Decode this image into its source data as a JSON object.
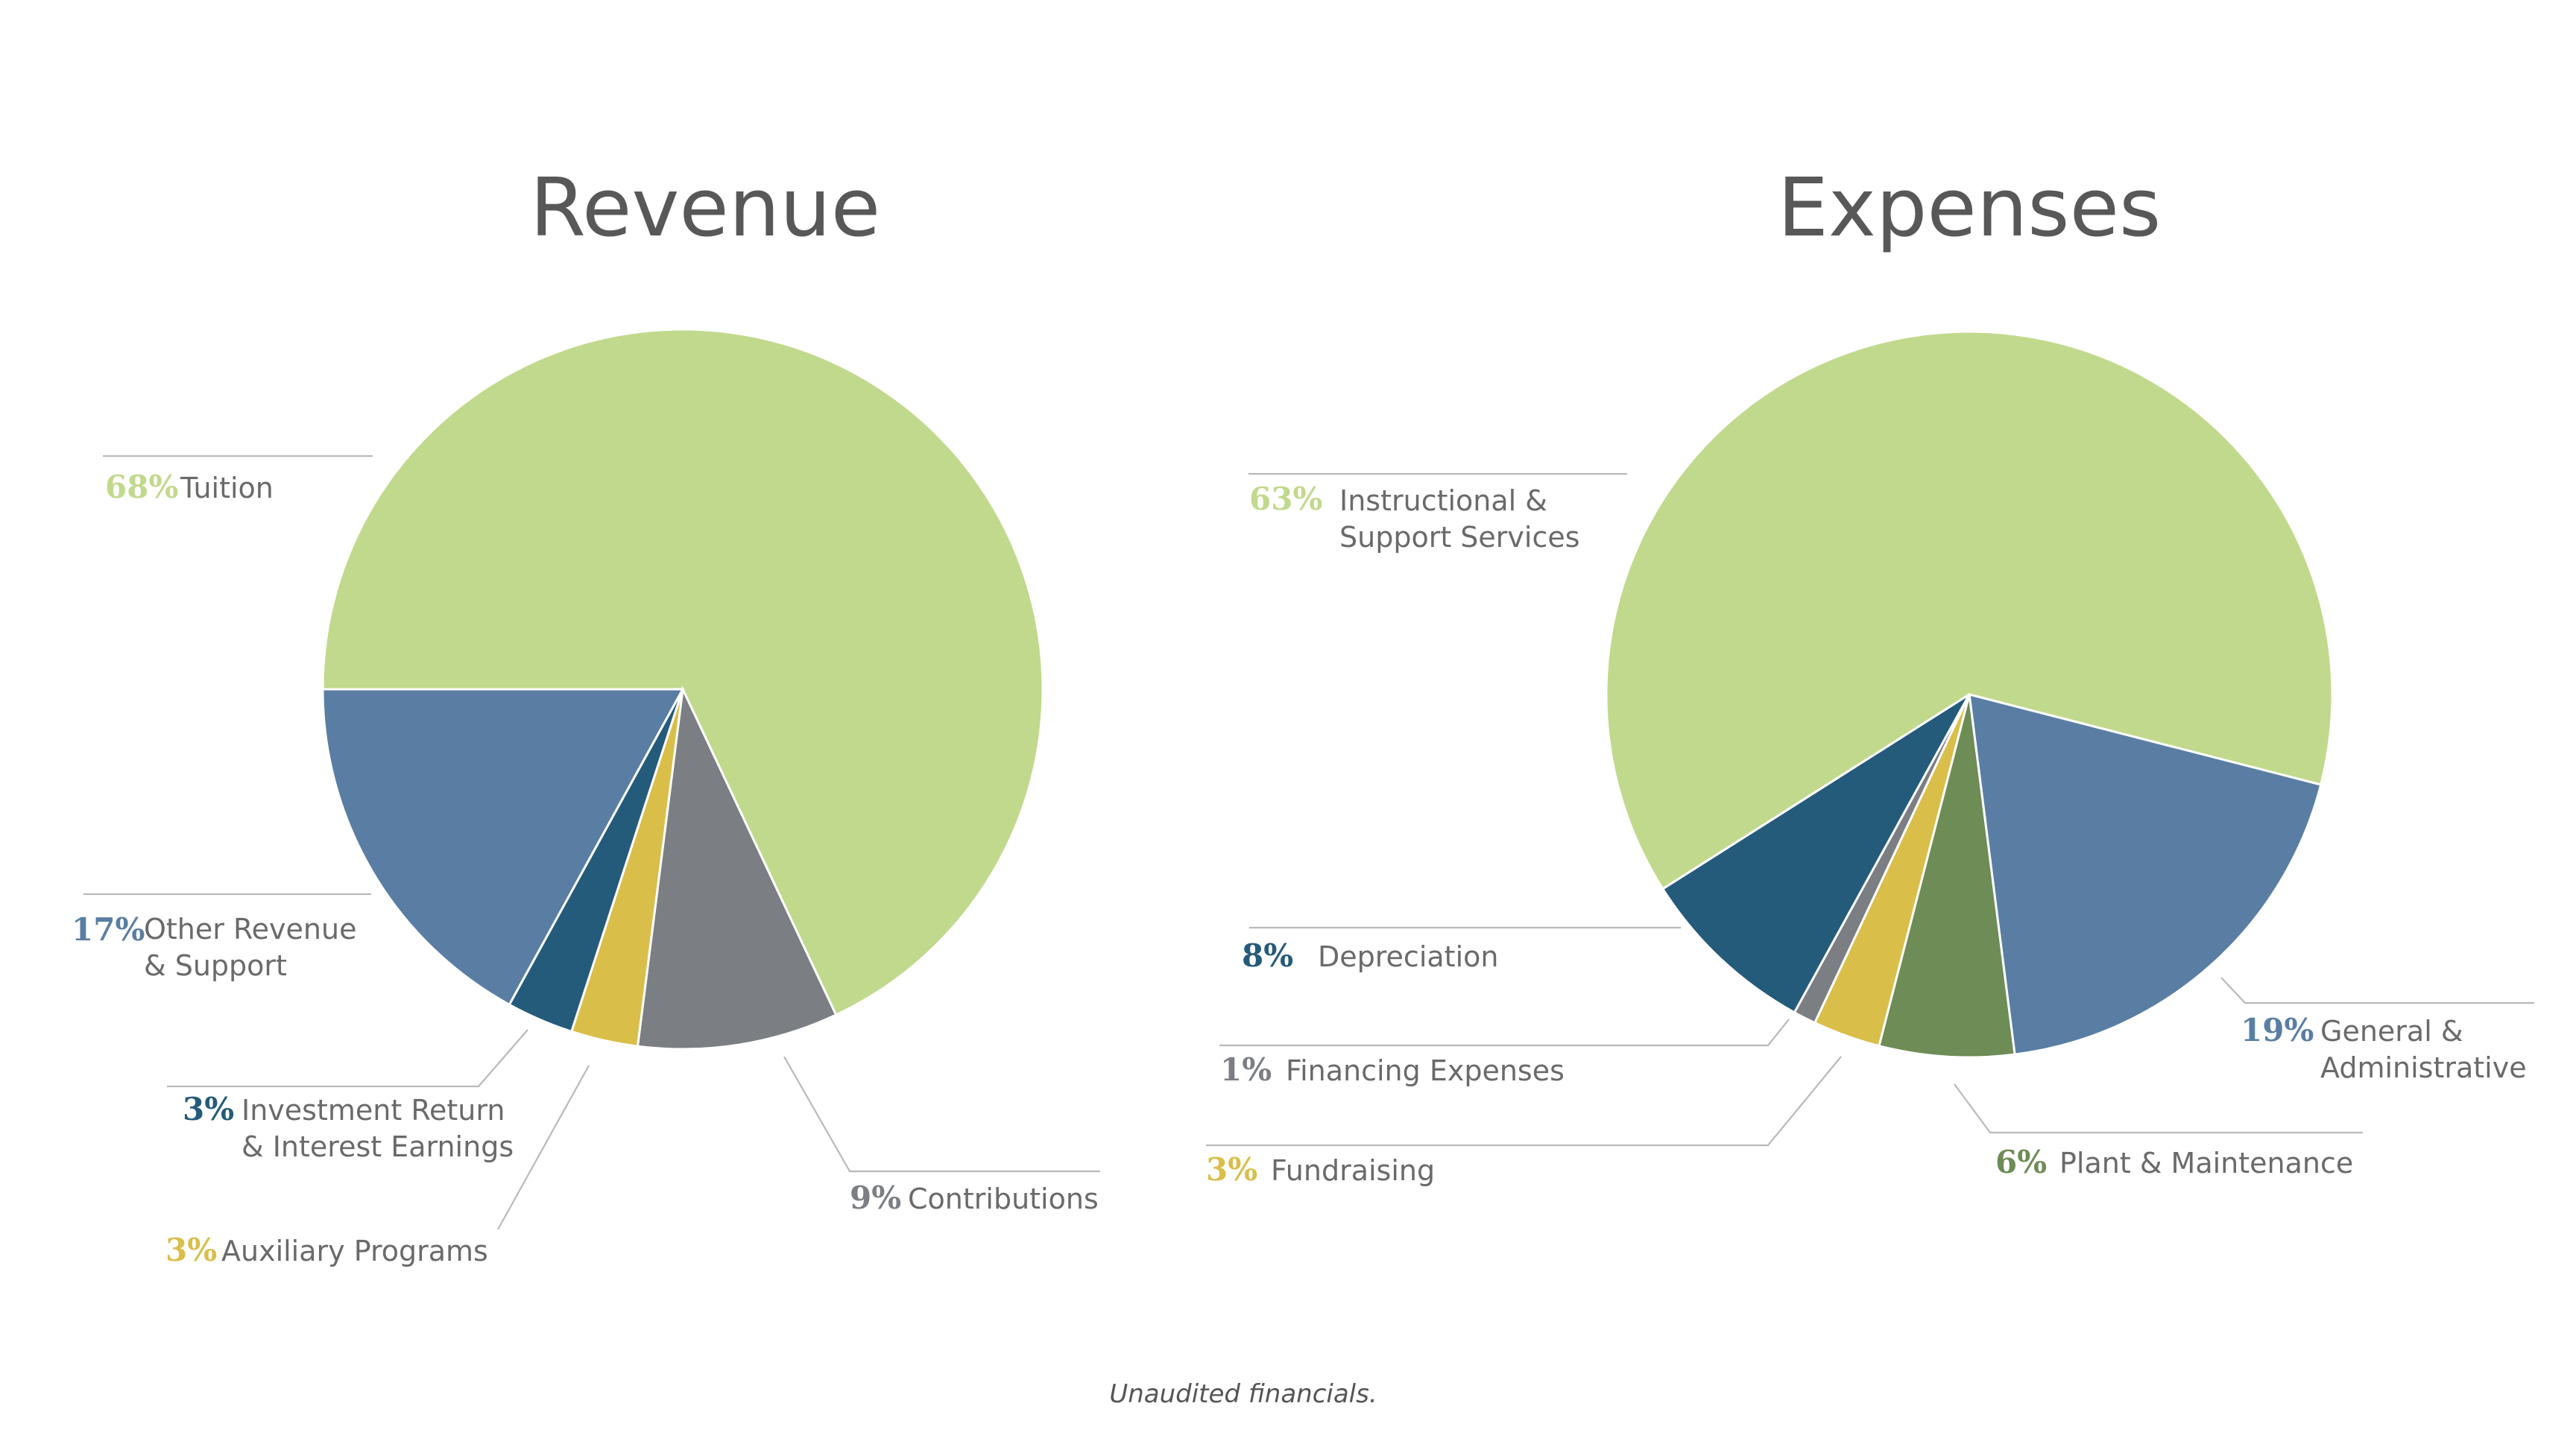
{
  "footnote": "Unaudited financials.",
  "colors": {
    "light_green": "#C1D98C",
    "steel_blue": "#5A7EA3",
    "dark_teal": "#255B7A",
    "mustard": "#D9BE4A",
    "gray": "#7B7E83",
    "olive_green": "#6E8C55"
  },
  "chart_data": [
    {
      "type": "pie",
      "title": "Revenue",
      "slices": [
        {
          "label": "Tuition",
          "percent_label": "68%",
          "value": 68,
          "color": "#C1D98C"
        },
        {
          "label": "Contributions",
          "percent_label": "9%",
          "value": 9,
          "color": "#7B7E83"
        },
        {
          "label": "Auxiliary Programs",
          "percent_label": "3%",
          "value": 3,
          "color": "#D9BE4A"
        },
        {
          "label": "Investment Return & Interest Earnings",
          "percent_label": "3%",
          "value": 3,
          "color": "#255B7A"
        },
        {
          "label": "Other Revenue & Support",
          "percent_label": "17%",
          "value": 17,
          "color": "#5A7EA3"
        }
      ]
    },
    {
      "type": "pie",
      "title": "Expenses",
      "slices": [
        {
          "label": "Instructional & Support Services",
          "percent_label": "63%",
          "value": 63,
          "color": "#C1D98C"
        },
        {
          "label": "General & Administrative",
          "percent_label": "19%",
          "value": 19,
          "color": "#5A7EA3"
        },
        {
          "label": "Plant & Maintenance",
          "percent_label": "6%",
          "value": 6,
          "color": "#6E8C55"
        },
        {
          "label": "Fundraising",
          "percent_label": "3%",
          "value": 3,
          "color": "#D9BE4A"
        },
        {
          "label": "Financing Expenses",
          "percent_label": "1%",
          "value": 1,
          "color": "#7B7E83"
        },
        {
          "label": "Depreciation",
          "percent_label": "8%",
          "value": 8,
          "color": "#255B7A"
        }
      ]
    }
  ]
}
